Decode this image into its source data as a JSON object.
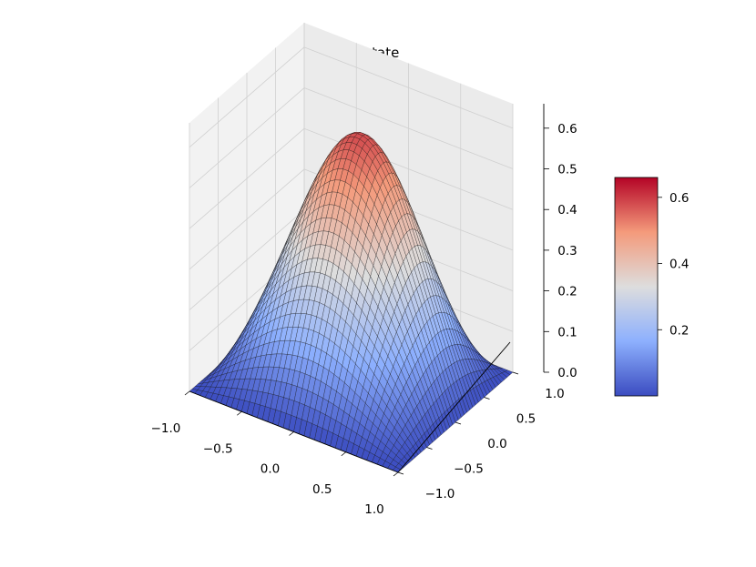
{
  "chart_data": {
    "type": "surface3d",
    "title": "Computed state",
    "x_ticks": [
      "−1.0",
      "−0.5",
      "0.0",
      "0.5",
      "1.0"
    ],
    "y_ticks": [
      "−1.0",
      "−0.5",
      "0.0",
      "0.5",
      "1.0"
    ],
    "z_ticks": [
      "0.0",
      "0.1",
      "0.2",
      "0.3",
      "0.4",
      "0.5",
      "0.6"
    ],
    "xlim": [
      -1,
      1
    ],
    "ylim": [
      -1,
      1
    ],
    "zlim": [
      0,
      0.66
    ],
    "surface": {
      "function": "peak value about 0.66 near (x,y)=(-0.1,0.55), zero along all four edges",
      "peak_value": 0.66,
      "grid_size": 40
    },
    "colorbar": {
      "colormap": "coolwarm",
      "range": [
        0.0,
        0.66
      ],
      "tick_labels": [
        "0.2",
        "0.4",
        "0.6"
      ],
      "tick_values": [
        0.2,
        0.4,
        0.6
      ]
    },
    "colors": {
      "pane": "#f2f2f2",
      "grid": "#d0d0d0",
      "low": "#3b4cc0",
      "mid": "#dddddd",
      "high": "#b40426"
    }
  }
}
